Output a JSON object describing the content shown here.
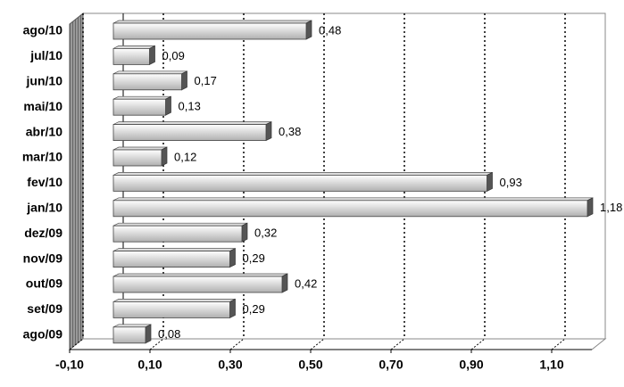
{
  "chart_data": {
    "type": "bar",
    "orientation": "horizontal",
    "color": "#b0b0b0",
    "categories": [
      "ago/10",
      "jul/10",
      "jun/10",
      "mai/10",
      "abr/10",
      "mar/10",
      "fev/10",
      "jan/10",
      "dez/09",
      "nov/09",
      "out/09",
      "set/09",
      "ago/09"
    ],
    "values": [
      0.48,
      0.09,
      0.17,
      0.13,
      0.38,
      0.12,
      0.93,
      1.18,
      0.32,
      0.29,
      0.42,
      0.29,
      0.08
    ],
    "value_labels": [
      "0,48",
      "0,09",
      "0,17",
      "0,13",
      "0,38",
      "0,12",
      "0,93",
      "1,18",
      "0,32",
      "0,29",
      "0,42",
      "0,29",
      "0,08"
    ],
    "xlim": [
      -0.1,
      1.2
    ],
    "xticks": [
      {
        "value": -0.1,
        "label": "-0,10"
      },
      {
        "value": 0.1,
        "label": "0,10"
      },
      {
        "value": 0.3,
        "label": "0,30"
      },
      {
        "value": 0.5,
        "label": "0,50"
      },
      {
        "value": 0.7,
        "label": "0,70"
      },
      {
        "value": 0.9,
        "label": "0,90"
      },
      {
        "value": 1.1,
        "label": "1,10"
      }
    ],
    "grid": true
  }
}
